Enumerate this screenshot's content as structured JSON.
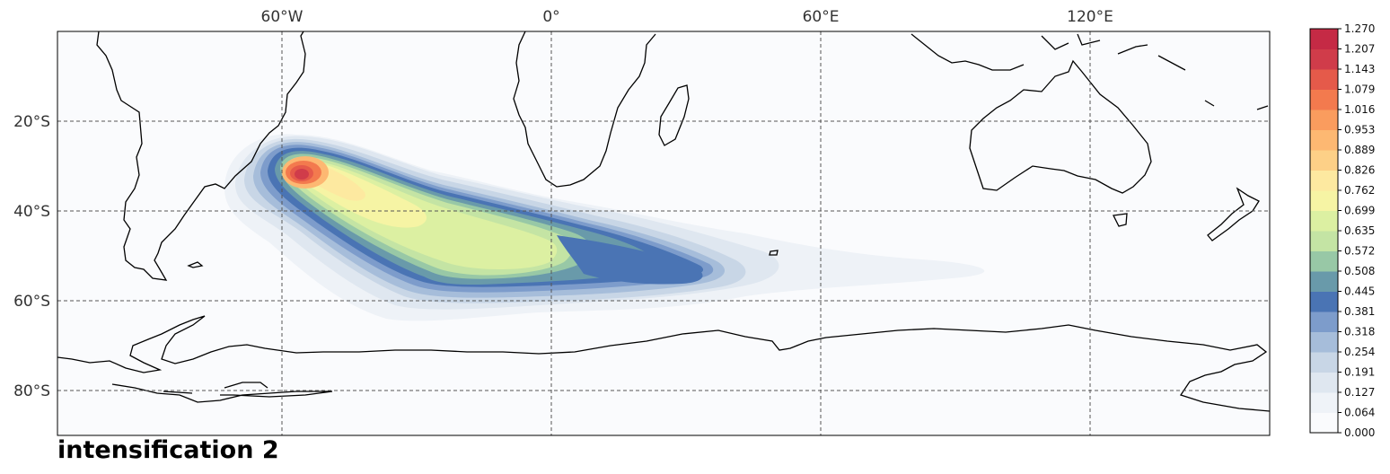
{
  "map": {
    "title": "intensification 2",
    "projection": "PlateCarree",
    "extent": {
      "lon_min": -110,
      "lon_max": 160,
      "lat_min": -90,
      "lat_max": 0
    },
    "gridlines": {
      "lon": [
        {
          "value": -60,
          "label": "60°W"
        },
        {
          "value": 0,
          "label": "0°"
        },
        {
          "value": 60,
          "label": "60°E"
        },
        {
          "value": 120,
          "label": "120°E"
        }
      ],
      "lat": [
        {
          "value": -20,
          "label": "20°S"
        },
        {
          "value": -40,
          "label": "40°S"
        },
        {
          "value": -60,
          "label": "60°S"
        },
        {
          "value": -80,
          "label": "80°S"
        }
      ]
    },
    "colorbar": {
      "min": 0.0,
      "max": 1.27,
      "ticks": [
        "0.000",
        "0.064",
        "0.127",
        "0.191",
        "0.254",
        "0.318",
        "0.381",
        "0.445",
        "0.508",
        "0.572",
        "0.635",
        "0.699",
        "0.762",
        "0.826",
        "0.889",
        "0.953",
        "1.016",
        "1.079",
        "1.143",
        "1.207",
        "1.270"
      ],
      "colors": [
        "#fafbfd",
        "#eff3f8",
        "#dfe7f0",
        "#c8d6e6",
        "#a6bdda",
        "#7d9ccb",
        "#4a74b4",
        "#699aaa",
        "#98c8a6",
        "#c4e4a4",
        "#dcf0a2",
        "#f6f4a4",
        "#fde9a0",
        "#fdd087",
        "#fdb872",
        "#fa9c5e",
        "#f37a4e",
        "#e55a4a",
        "#d03c4a",
        "#c52a45"
      ]
    },
    "plume": [
      {
        "lon": -38,
        "lat": -33,
        "rx": 16,
        "ry": 8,
        "rot": 20,
        "level": 8
      },
      {
        "lon": -34,
        "lat": -34,
        "rx": 12,
        "ry": 7,
        "rot": 20,
        "level": 11
      },
      {
        "lon": -36,
        "lat": -32,
        "rx": 5,
        "ry": 4,
        "rot": 20,
        "level": 16
      },
      {
        "lon": -18,
        "lat": -40,
        "rx": 16,
        "ry": 6,
        "rot": 15,
        "level": 10
      },
      {
        "lon": 15,
        "lat": -49,
        "rx": 30,
        "ry": 8,
        "rot": 10,
        "level": 7
      },
      {
        "lon": 35,
        "lat": -51,
        "rx": 25,
        "ry": 6,
        "rot": 5,
        "level": 6
      },
      {
        "lon": -5,
        "lat": -45,
        "rx": 30,
        "ry": 10,
        "rot": 15,
        "level": 4
      },
      {
        "lon": 30,
        "lat": -48,
        "rx": 40,
        "ry": 12,
        "rot": 8,
        "level": 2
      }
    ]
  }
}
